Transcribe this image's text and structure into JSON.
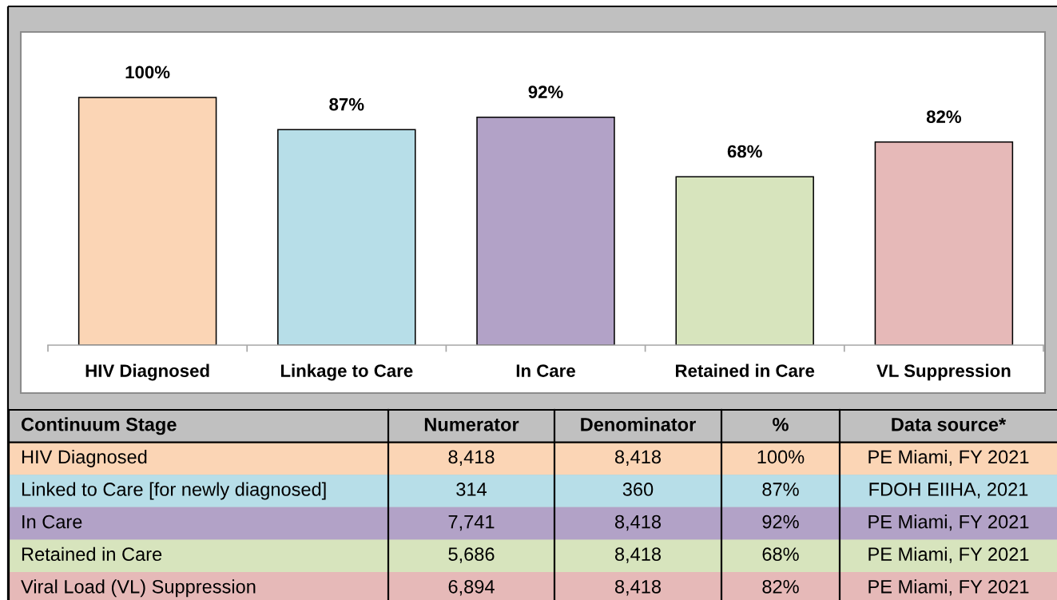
{
  "chart_data": {
    "type": "bar",
    "categories": [
      "HIV Diagnosed",
      "Linkage to Care",
      "In Care",
      "Retained in Care",
      "VL Suppression"
    ],
    "values": [
      100,
      87,
      92,
      68,
      82
    ],
    "colors": [
      "#fbd5b5",
      "#b7dee8",
      "#b2a2c7",
      "#d7e4bd",
      "#e6b9b8"
    ],
    "value_labels": [
      "100%",
      "87%",
      "92%",
      "68%",
      "82%"
    ],
    "tick_labels": "x",
    "annotations": [
      "Continuum Stage",
      "Numerator",
      "Denominator",
      "%",
      "Data source*",
      "HIV Diagnosed",
      "8,418",
      "8,418",
      "100%",
      "PE Miami, FY 2021",
      "Linked to Care [for newly diagnosed]",
      "314",
      "360",
      "87%",
      "FDOH EIIHA, 2021",
      "In Care",
      "7,741",
      "8,418",
      "92%",
      "PE Miami, FY 2021",
      "Retained in Care",
      "5,686",
      "8,418",
      "68%",
      "PE Miami, FY 2021",
      "Viral Load (VL) Suppression",
      "6,894",
      "8,418",
      "82%",
      "PE Miami, FY 2021"
    ]
  }
}
